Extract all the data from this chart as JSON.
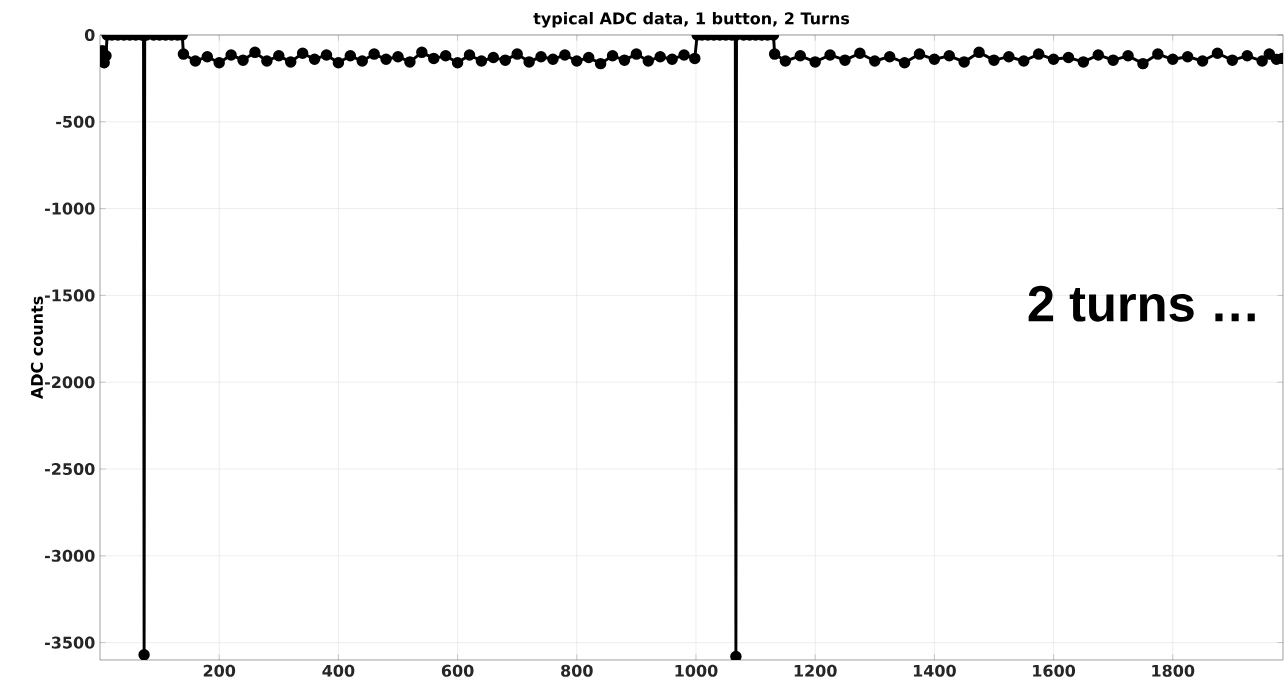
{
  "chart_data": {
    "type": "line",
    "title": "typical ADC data, 1 button, 2 Turns",
    "ylabel": "ADC counts",
    "annotations": [
      "2 turns …"
    ],
    "x": [
      1,
      4,
      7,
      10,
      12,
      20,
      30,
      40,
      50,
      60,
      70,
      73,
      74,
      75,
      78,
      90,
      100,
      110,
      120,
      130,
      138,
      140,
      160,
      180,
      200,
      220,
      240,
      260,
      280,
      300,
      320,
      340,
      360,
      380,
      400,
      420,
      440,
      460,
      480,
      500,
      520,
      540,
      560,
      580,
      600,
      620,
      640,
      660,
      680,
      700,
      720,
      740,
      760,
      780,
      800,
      820,
      840,
      860,
      880,
      900,
      920,
      940,
      960,
      980,
      998,
      1002,
      1010,
      1020,
      1030,
      1040,
      1050,
      1060,
      1066,
      1067,
      1068,
      1080,
      1090,
      1100,
      1110,
      1120,
      1130,
      1132,
      1150,
      1175,
      1200,
      1225,
      1250,
      1275,
      1300,
      1325,
      1350,
      1375,
      1400,
      1425,
      1450,
      1475,
      1500,
      1525,
      1550,
      1575,
      1600,
      1625,
      1650,
      1675,
      1700,
      1725,
      1750,
      1775,
      1800,
      1825,
      1850,
      1875,
      1900,
      1925,
      1950,
      1962,
      1974,
      1984
    ],
    "series": [
      {
        "color": "#000000",
        "values": [
          -140,
          -90,
          -160,
          -120,
          0,
          0,
          0,
          0,
          0,
          0,
          0,
          0,
          -3570,
          0,
          0,
          0,
          0,
          0,
          0,
          0,
          0,
          -110,
          -150,
          -125,
          -160,
          -115,
          -145,
          -100,
          -150,
          -120,
          -155,
          -105,
          -140,
          -115,
          -160,
          -120,
          -150,
          -110,
          -140,
          -125,
          -155,
          -100,
          -135,
          -120,
          -160,
          -115,
          -150,
          -130,
          -145,
          -110,
          -155,
          -125,
          -140,
          -115,
          -150,
          -130,
          -165,
          -120,
          -145,
          -110,
          -150,
          -125,
          -140,
          -115,
          -135,
          0,
          0,
          0,
          0,
          0,
          0,
          0,
          0,
          -3580,
          0,
          0,
          0,
          0,
          0,
          0,
          0,
          -110,
          -150,
          -120,
          -155,
          -115,
          -145,
          -105,
          -150,
          -125,
          -160,
          -110,
          -140,
          -120,
          -155,
          -100,
          -145,
          -125,
          -150,
          -110,
          -140,
          -130,
          -155,
          -115,
          -145,
          -120,
          -165,
          -110,
          -140,
          -125,
          -150,
          -105,
          -145,
          -120,
          -150,
          -110,
          -140,
          -135
        ]
      }
    ],
    "marker": "circle",
    "line_style": "solid",
    "grid": true,
    "xlim": [
      0,
      1985
    ],
    "ylim": [
      -3600,
      0
    ],
    "xticks": [
      200,
      400,
      600,
      800,
      1000,
      1200,
      1400,
      1600,
      1800
    ],
    "yticks": [
      -3500,
      -3000,
      -2500,
      -2000,
      -1500,
      -1000,
      -500,
      0
    ]
  }
}
